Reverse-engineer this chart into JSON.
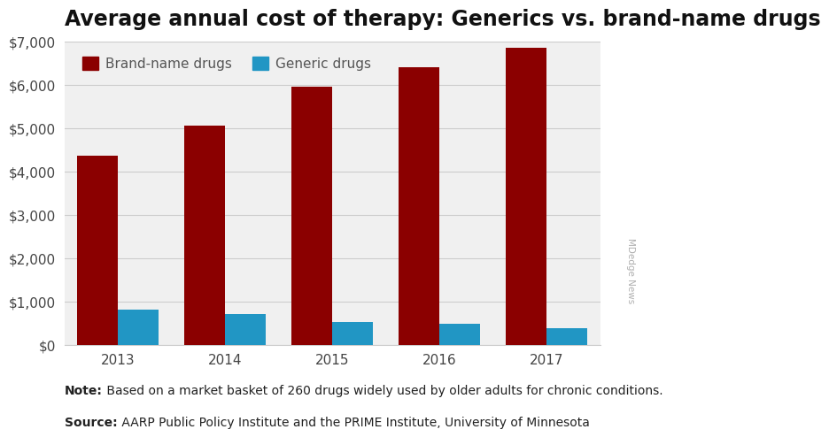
{
  "title": "Average annual cost of therapy: Generics vs. brand-name drugs",
  "years": [
    "2013",
    "2014",
    "2015",
    "2016",
    "2017"
  ],
  "brand_values": [
    4350,
    5050,
    5950,
    6400,
    6850
  ],
  "generic_values": [
    820,
    700,
    520,
    480,
    390
  ],
  "brand_color": "#8B0000",
  "generic_color": "#2196C4",
  "ylim": [
    0,
    7000
  ],
  "yticks": [
    0,
    1000,
    2000,
    3000,
    4000,
    5000,
    6000,
    7000
  ],
  "legend_brand": "Brand-name drugs",
  "legend_generic": "Generic drugs",
  "note_bold": "Note:",
  "note_rest": " Based on a market basket of 260 drugs widely used by older adults for chronic conditions.",
  "source_bold": "Source:",
  "source_rest": " AARP Public Policy Institute and the PRIME Institute, University of Minnesota",
  "watermark": "MDedge News",
  "plot_bg_color": "#f0f0f0",
  "fig_bg_color": "#ffffff",
  "bar_width": 0.38,
  "grid_color": "#cccccc",
  "title_fontsize": 17,
  "axis_fontsize": 11,
  "legend_fontsize": 11,
  "note_fontsize": 10
}
